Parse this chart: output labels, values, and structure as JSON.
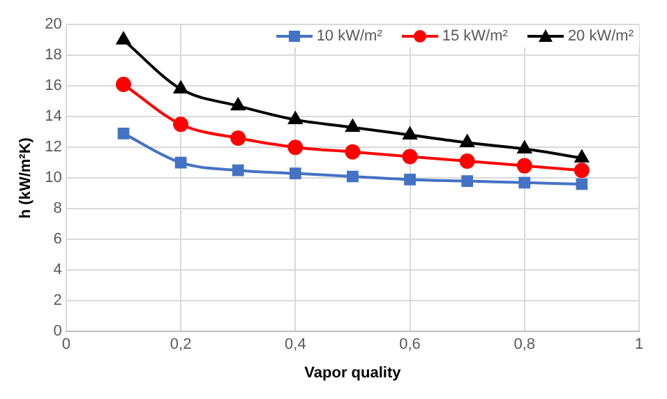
{
  "chart_data": {
    "type": "line",
    "xlabel": "Vapor quality",
    "ylabel": "h (kW/m²K)",
    "x": [
      0.1,
      0.2,
      0.3,
      0.4,
      0.5,
      0.6,
      0.7,
      0.8,
      0.9
    ],
    "series": [
      {
        "name": "10 kW/m²",
        "color": "#4472c4",
        "marker": "square",
        "values": [
          12.9,
          11.0,
          10.5,
          10.3,
          10.1,
          9.9,
          9.8,
          9.7,
          9.6
        ]
      },
      {
        "name": "15 kW/m²",
        "color": "#ff0000",
        "marker": "circle",
        "values": [
          16.1,
          13.5,
          12.6,
          12.0,
          11.7,
          11.4,
          11.1,
          10.8,
          10.5
        ]
      },
      {
        "name": "20 kW/m²",
        "color": "#000000",
        "marker": "triangle",
        "values": [
          19.0,
          15.8,
          14.7,
          13.8,
          13.3,
          12.8,
          12.3,
          11.9,
          11.3
        ]
      }
    ],
    "xlim": [
      0,
      1
    ],
    "xticks": [
      0,
      {
        "value": 0.2,
        "label": "0,2"
      },
      {
        "value": 0.4,
        "label": "0,4"
      },
      {
        "value": 0.6,
        "label": "0,6"
      },
      {
        "value": 0.8,
        "label": "0,8"
      },
      1
    ],
    "ylim": [
      0,
      20
    ],
    "yticks": [
      0,
      2,
      4,
      6,
      8,
      10,
      12,
      14,
      16,
      18,
      20
    ],
    "grid": true,
    "legend": "top right",
    "line_style": "solid"
  }
}
